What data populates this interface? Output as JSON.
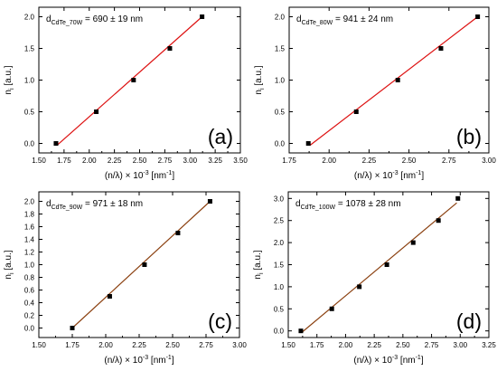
{
  "figure": {
    "background": "#ffffff",
    "frame_color": "#000000",
    "marker_color": "#000000"
  },
  "chart_data": [
    {
      "type": "scatter",
      "panel_label": "(a)",
      "annotation": {
        "base": "d",
        "sub": "CdTe_70W",
        "text": " = 690 ± 19 nm"
      },
      "xlabel": {
        "pre": "(n/λ) × 10",
        "sup": "-3",
        "mid": " [nm",
        "sup2": "-1",
        "post": "]"
      },
      "ylabel": {
        "base": "n",
        "sub": "i",
        "post": " [a.u.]"
      },
      "xlim": [
        1.5,
        3.5
      ],
      "ylim": [
        -0.15,
        2.15
      ],
      "xticks": [
        "1.50",
        "1.75",
        "2.00",
        "2.25",
        "2.50",
        "2.75",
        "3.00",
        "3.25",
        "3.50"
      ],
      "yticks": [
        "0.0",
        "0.5",
        "1.0",
        "1.5",
        "2.0"
      ],
      "points": {
        "x": [
          1.67,
          2.07,
          2.44,
          2.8,
          3.12
        ],
        "y": [
          0,
          0.5,
          1.0,
          1.5,
          2.0
        ]
      },
      "fit": {
        "x": [
          1.68,
          3.12
        ],
        "y": [
          -0.03,
          2.0
        ],
        "color": "#dd1111"
      }
    },
    {
      "type": "scatter",
      "panel_label": "(b)",
      "annotation": {
        "base": "d",
        "sub": "CdTe_80W",
        "text": " = 941 ± 24 nm"
      },
      "xlabel": {
        "pre": "(n/λ) × 10",
        "sup": "-3",
        "mid": " [nm",
        "sup2": "-1",
        "post": "]"
      },
      "ylabel": {
        "base": "n",
        "sub": "i",
        "post": " [a.u.]"
      },
      "xlim": [
        1.75,
        3.0
      ],
      "ylim": [
        -0.15,
        2.15
      ],
      "xticks": [
        "1.75",
        "2.00",
        "2.25",
        "2.50",
        "2.75",
        "3.00"
      ],
      "yticks": [
        "0.0",
        "0.5",
        "1.0",
        "1.5",
        "2.0"
      ],
      "points": {
        "x": [
          1.87,
          2.17,
          2.43,
          2.7,
          2.93
        ],
        "y": [
          0,
          0.5,
          1.0,
          1.5,
          2.0
        ]
      },
      "fit": {
        "x": [
          1.88,
          2.93
        ],
        "y": [
          -0.03,
          2.0
        ],
        "color": "#dd1111"
      }
    },
    {
      "type": "scatter",
      "panel_label": "(c)",
      "annotation": {
        "base": "d",
        "sub": "CdTe_90W",
        "text": " = 971 ± 18 nm"
      },
      "xlabel": {
        "pre": "(n/λ) × 10",
        "sup": "-3",
        "mid": " [nm",
        "sup2": "-1",
        "post": "]"
      },
      "ylabel": {
        "base": "n",
        "sub": "i",
        "post": " [a.u.]"
      },
      "xlim": [
        1.5,
        3.0
      ],
      "ylim": [
        -0.15,
        2.15
      ],
      "xticks": [
        "1.50",
        "1.75",
        "2.00",
        "2.25",
        "2.50",
        "2.75",
        "3.00"
      ],
      "yticks": [
        "0.0",
        "0.2",
        "0.4",
        "0.6",
        "0.8",
        "1.0",
        "1.2",
        "1.4",
        "1.6",
        "1.8",
        "2.0"
      ],
      "points": {
        "x": [
          1.75,
          2.03,
          2.29,
          2.54,
          2.78
        ],
        "y": [
          0,
          0.5,
          1.0,
          1.5,
          2.0
        ]
      },
      "fit": {
        "x": [
          1.75,
          2.78
        ],
        "y": [
          0,
          2.0
        ],
        "color": "#8b4010"
      }
    },
    {
      "type": "scatter",
      "panel_label": "(d)",
      "annotation": {
        "base": "d",
        "sub": "CdTe_100W",
        "text": " = 1078 ± 28 nm"
      },
      "xlabel": {
        "pre": "(n/λ) × 10",
        "sup": "-3",
        "mid": " [nm",
        "sup2": "-1",
        "post": "]"
      },
      "ylabel": {
        "base": "n",
        "sub": "i",
        "post": " [a.u.]"
      },
      "xlim": [
        1.5,
        3.25
      ],
      "ylim": [
        -0.15,
        3.15
      ],
      "xticks": [
        "1.50",
        "1.75",
        "2.00",
        "2.25",
        "2.50",
        "2.75",
        "3.00",
        "3.25"
      ],
      "yticks": [
        "0.0",
        "0.5",
        "1.0",
        "1.5",
        "2.0",
        "2.5",
        "3.0"
      ],
      "points": {
        "x": [
          1.61,
          1.88,
          2.12,
          2.36,
          2.59,
          2.81,
          2.98
        ],
        "y": [
          0,
          0.5,
          1.0,
          1.5,
          2.0,
          2.5,
          3.0
        ]
      },
      "fit": {
        "x": [
          1.62,
          2.97
        ],
        "y": [
          -0.03,
          2.9
        ],
        "color": "#8b4010"
      }
    }
  ]
}
